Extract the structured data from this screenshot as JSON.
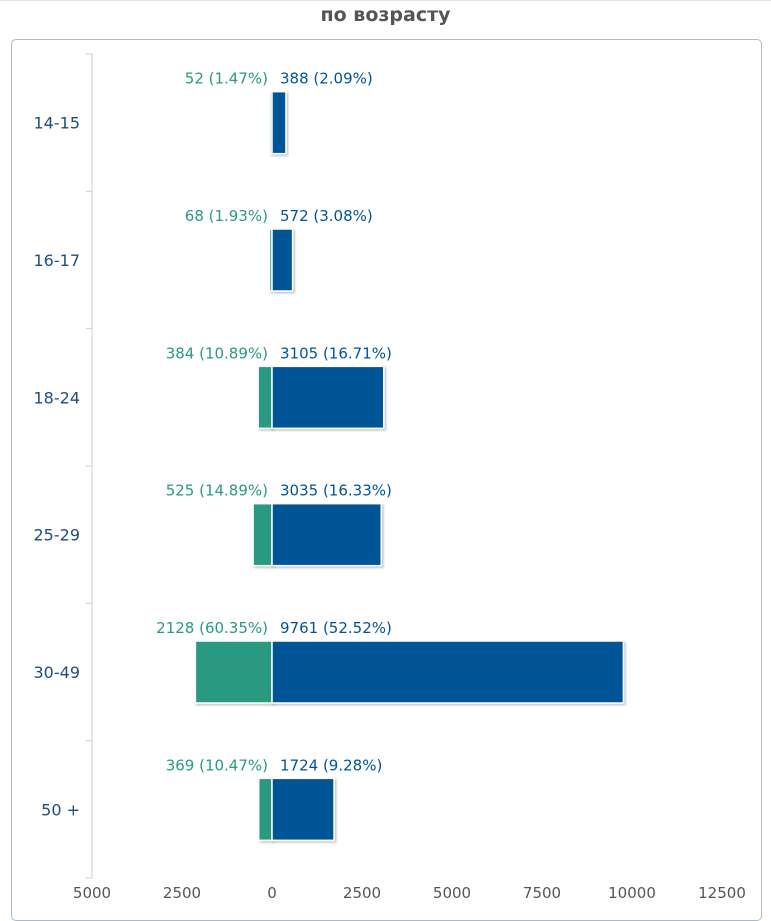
{
  "page": {
    "title": "по возрасту"
  },
  "chart_data": {
    "type": "bar",
    "orientation": "horizontal",
    "diverging": true,
    "title": "по возрасту",
    "categories": [
      "14-15",
      "16-17",
      "18-24",
      "25-29",
      "30-49",
      "50 +"
    ],
    "series": [
      {
        "color": "#2a9982",
        "side": "left",
        "values": [
          52,
          68,
          384,
          525,
          2128,
          369
        ],
        "labels": [
          "52 (1.47%)",
          "68 (1.93%)",
          "384 (10.89%)",
          "525 (14.89%)",
          "2128 (60.35%)",
          "369 (10.47%)"
        ]
      },
      {
        "color": "#005496",
        "side": "right",
        "values": [
          388,
          572,
          3105,
          3035,
          9761,
          1724
        ],
        "labels": [
          "388 (2.09%)",
          "572 (3.08%)",
          "3105 (16.71%)",
          "3035 (16.33%)",
          "9761 (52.52%)",
          "1724 (9.28%)"
        ]
      }
    ],
    "x_ticks": [
      "5000",
      "2500",
      "0",
      "2500",
      "5000",
      "7500",
      "10000",
      "12500"
    ],
    "xlim": [
      -5000,
      12500
    ],
    "grid": false,
    "legend": "none"
  }
}
